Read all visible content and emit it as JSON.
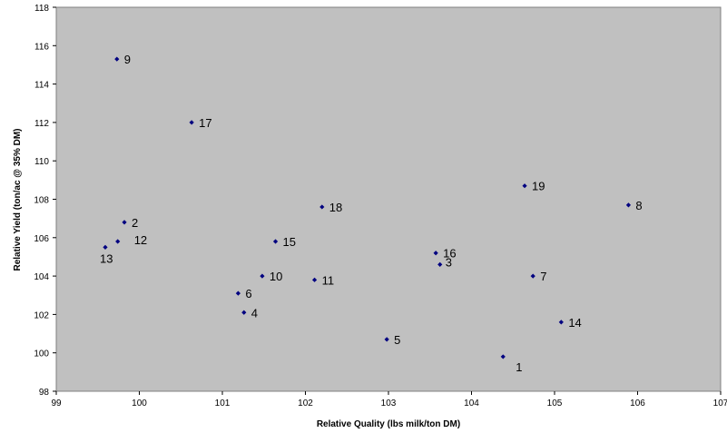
{
  "chart_data": {
    "type": "scatter",
    "xlabel": "Relative Quality (lbs milk/ton DM)",
    "ylabel": "Relative Yield (ton/ac @ 35% DM)",
    "xlim": [
      99,
      107
    ],
    "ylim": [
      98,
      118
    ],
    "x_ticks": [
      "99",
      "100",
      "101",
      "102",
      "103",
      "104",
      "105",
      "106",
      "107"
    ],
    "y_ticks": [
      "98",
      "100",
      "102",
      "104",
      "106",
      "108",
      "110",
      "112",
      "114",
      "116",
      "118"
    ],
    "grid": "none",
    "plot_background": "#c0c0c0",
    "marker_color": "#000080",
    "points": [
      {
        "label": "1",
        "x": 104.38,
        "y": 99.8
      },
      {
        "label": "2",
        "x": 99.82,
        "y": 106.8
      },
      {
        "label": "3",
        "x": 103.62,
        "y": 104.6
      },
      {
        "label": "4",
        "x": 101.26,
        "y": 102.1
      },
      {
        "label": "5",
        "x": 102.98,
        "y": 100.7
      },
      {
        "label": "6",
        "x": 101.19,
        "y": 103.1
      },
      {
        "label": "7",
        "x": 104.74,
        "y": 104.0
      },
      {
        "label": "8",
        "x": 105.89,
        "y": 107.7
      },
      {
        "label": "9",
        "x": 99.73,
        "y": 115.3
      },
      {
        "label": "10",
        "x": 101.48,
        "y": 104.0
      },
      {
        "label": "11",
        "x": 102.11,
        "y": 103.8
      },
      {
        "label": "12",
        "x": 99.74,
        "y": 105.8
      },
      {
        "label": "13",
        "x": 99.59,
        "y": 105.5
      },
      {
        "label": "14",
        "x": 105.08,
        "y": 101.6
      },
      {
        "label": "15",
        "x": 101.64,
        "y": 105.8
      },
      {
        "label": "16",
        "x": 103.57,
        "y": 105.2
      },
      {
        "label": "17",
        "x": 100.63,
        "y": 112.0
      },
      {
        "label": "18",
        "x": 102.2,
        "y": 107.6
      },
      {
        "label": "19",
        "x": 104.64,
        "y": 108.7
      }
    ]
  }
}
